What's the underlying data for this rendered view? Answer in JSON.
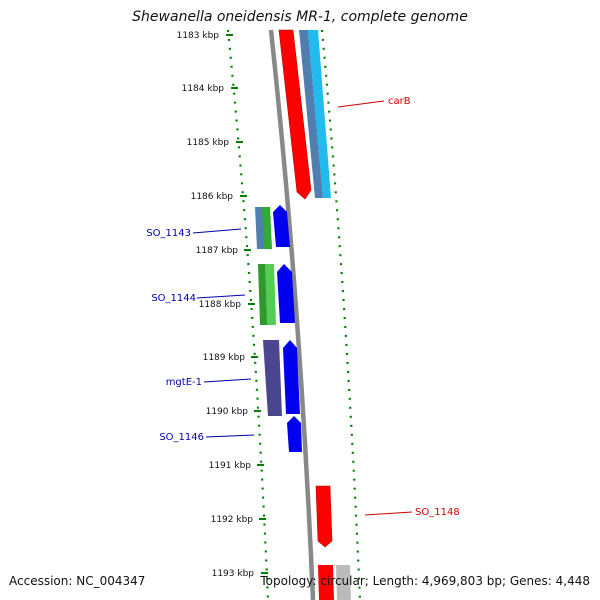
{
  "header": {
    "title": "Shewanella oneidensis MR-1, complete genome"
  },
  "footer": {
    "accession": "Accession: NC_004347",
    "summary": "Topology: circular; Length: 4,969,803 bp; Genes: 4,448"
  },
  "ticks": [
    "1183 kbp",
    "1184 kbp",
    "1185 kbp",
    "1186 kbp",
    "1187 kbp",
    "1188 kbp",
    "1189 kbp",
    "1190 kbp",
    "1191 kbp",
    "1192 kbp",
    "1193 kbp"
  ],
  "gene_labels": [
    "carB",
    "SO_1143",
    "SO_1144",
    "mgtE-1",
    "SO_1146",
    "SO_1148"
  ],
  "colors": {
    "red_feature": "#ff0000",
    "blue_feature": "#0000ee",
    "green_feature": "#33aa33",
    "steel_feature": "#4f7fb0",
    "cyan_feature": "#22bbee",
    "purple_feature": "#4a4790",
    "grey_backbone": "#888888",
    "tick_green": "#008000",
    "label_red": "#cc0000",
    "label_blue": "#0000aa"
  }
}
